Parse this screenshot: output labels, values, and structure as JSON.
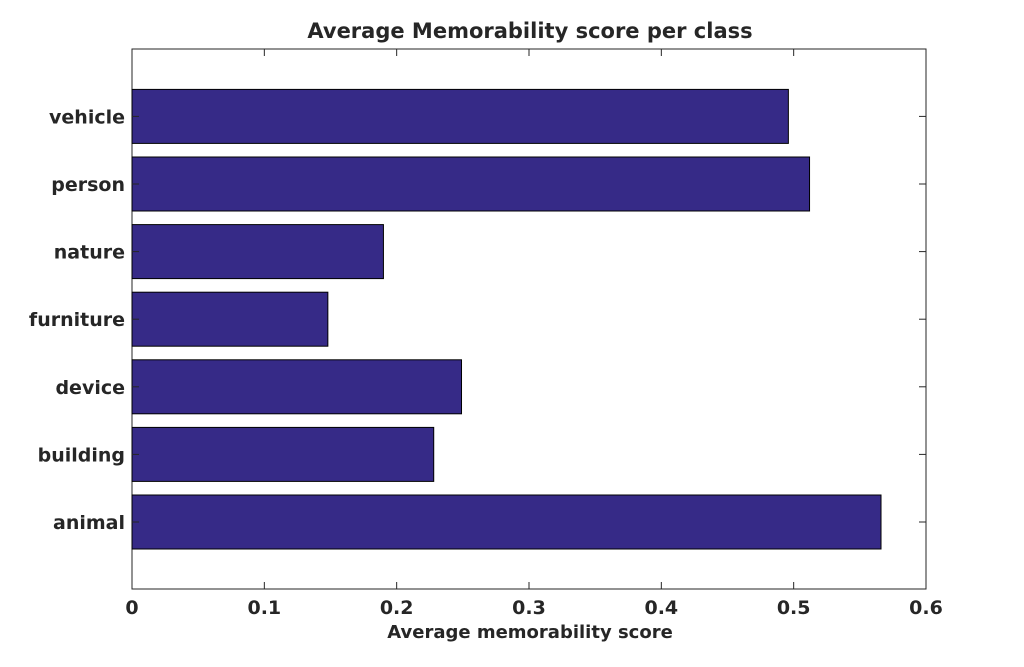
{
  "chart_data": {
    "type": "bar",
    "orientation": "horizontal",
    "title": "Average Memorability score per class",
    "xlabel": "Average memorability score",
    "ylabel": "",
    "categories": [
      "animal",
      "building",
      "device",
      "furniture",
      "nature",
      "person",
      "vehicle"
    ],
    "values": [
      0.566,
      0.228,
      0.249,
      0.148,
      0.19,
      0.512,
      0.496
    ],
    "xlim": [
      0,
      0.6
    ],
    "xticks": [
      "0",
      "0.1",
      "0.2",
      "0.3",
      "0.4",
      "0.5",
      "0.6"
    ],
    "grid": false,
    "legend": "none",
    "bar_color": "#362a87"
  }
}
